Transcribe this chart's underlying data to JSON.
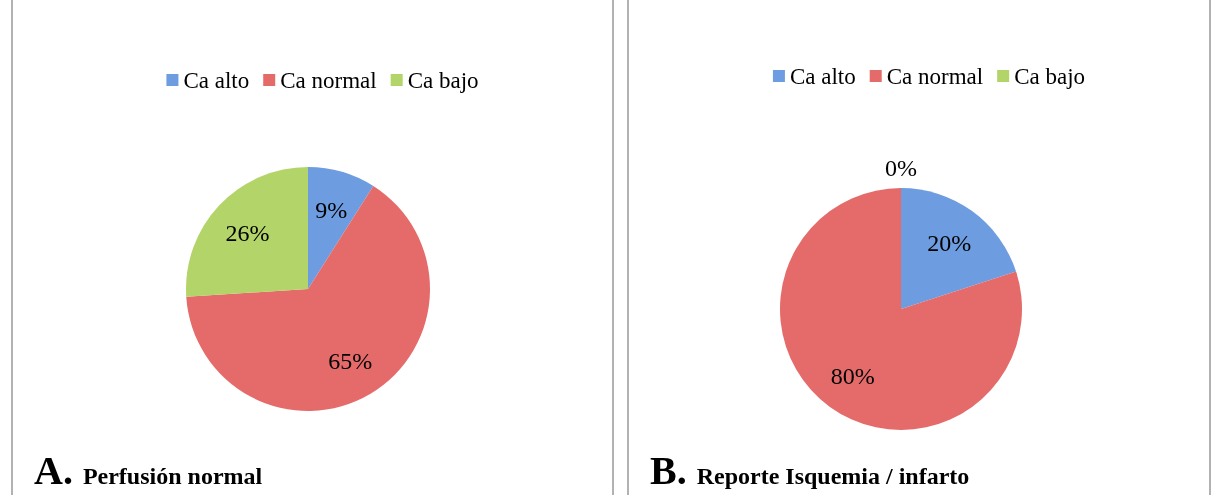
{
  "chart_data": [
    {
      "type": "pie",
      "title": "Perfusión normal",
      "annotations": [
        "A."
      ],
      "categories": [
        "Ca alto",
        "Ca normal",
        "Ca bajo"
      ],
      "values": [
        9,
        65,
        26
      ],
      "value_labels": [
        "9%",
        "65%",
        "26%"
      ],
      "colors": [
        "#6d9de0",
        "#e56b6a",
        "#b3d468"
      ],
      "legend": "top"
    },
    {
      "type": "pie",
      "title": "Reporte Isquemia / infarto",
      "annotations": [
        "B."
      ],
      "categories": [
        "Ca alto",
        "Ca normal",
        "Ca bajo"
      ],
      "values": [
        20,
        80,
        0
      ],
      "value_labels": [
        "20%",
        "80%",
        "0%"
      ],
      "colors": [
        "#6d9de0",
        "#e56b6a",
        "#b3d468"
      ],
      "legend": "top"
    }
  ]
}
